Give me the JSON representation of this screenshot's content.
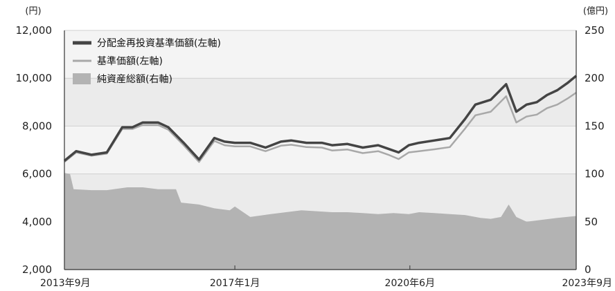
{
  "chart_data": {
    "type": "area",
    "y_left_unit": "(円)",
    "y_right_unit": "(億円)",
    "y_left_ticks": [
      "12,000",
      "10,000",
      "8,000",
      "6,000",
      "4,000",
      "2,000"
    ],
    "y_left_tick_values": [
      12000,
      10000,
      8000,
      6000,
      4000,
      2000
    ],
    "y_right_ticks": [
      "250",
      "200",
      "150",
      "100",
      "50",
      "0"
    ],
    "y_right_tick_values": [
      250,
      200,
      150,
      100,
      50,
      0
    ],
    "x_ticks": [
      "2013年9月",
      "2017年1月",
      "2020年6月",
      "2023年9月"
    ],
    "x_tick_values": [
      2013.67,
      2017.0,
      2020.42,
      2023.67
    ],
    "ylim_left": [
      2000,
      12000
    ],
    "ylim_right": [
      0,
      250
    ],
    "xlim": [
      2013.67,
      2023.67
    ],
    "grid": true,
    "legend_position": "top-left",
    "legend": [
      {
        "label": "分配金再投資基準価額(左軸)",
        "style": "line-thick",
        "color": "#444444"
      },
      {
        "label": "基準価額(左軸)",
        "style": "line-thin",
        "color": "#a8a8a8"
      },
      {
        "label": "純資産総額(右軸)",
        "style": "area",
        "color": "#b3b3b3"
      }
    ],
    "series": [
      {
        "key": "reinvested",
        "axis": "left",
        "x": [
          2013.67,
          2013.9,
          2014.2,
          2014.5,
          2014.8,
          2015.0,
          2015.2,
          2015.5,
          2015.7,
          2016.0,
          2016.3,
          2016.6,
          2016.8,
          2017.0,
          2017.3,
          2017.6,
          2017.9,
          2018.1,
          2018.4,
          2018.7,
          2018.9,
          2019.2,
          2019.5,
          2019.8,
          2020.0,
          2020.2,
          2020.4,
          2020.6,
          2020.9,
          2021.2,
          2021.5,
          2021.7,
          2022.0,
          2022.3,
          2022.5,
          2022.7,
          2022.9,
          2023.1,
          2023.3,
          2023.5,
          2023.67
        ],
        "values": [
          6550,
          6950,
          6800,
          6900,
          7950,
          7950,
          8150,
          8150,
          7950,
          7300,
          6600,
          7500,
          7350,
          7300,
          7300,
          7100,
          7350,
          7400,
          7300,
          7300,
          7200,
          7250,
          7100,
          7200,
          7050,
          6900,
          7200,
          7300,
          7400,
          7500,
          8300,
          8900,
          9100,
          9750,
          8600,
          8900,
          9000,
          9300,
          9500,
          9800,
          10100
        ]
      },
      {
        "key": "nav",
        "axis": "left",
        "x": [
          2013.67,
          2013.9,
          2014.2,
          2014.5,
          2014.8,
          2015.0,
          2015.2,
          2015.5,
          2015.7,
          2016.0,
          2016.3,
          2016.6,
          2016.8,
          2017.0,
          2017.3,
          2017.6,
          2017.9,
          2018.1,
          2018.4,
          2018.7,
          2018.9,
          2019.2,
          2019.5,
          2019.8,
          2020.0,
          2020.2,
          2020.4,
          2020.6,
          2020.9,
          2021.2,
          2021.5,
          2021.7,
          2022.0,
          2022.3,
          2022.5,
          2022.7,
          2022.9,
          2023.1,
          2023.3,
          2023.5,
          2023.67
        ],
        "values": [
          6500,
          6900,
          6760,
          6850,
          7880,
          7880,
          8050,
          8050,
          7850,
          7200,
          6500,
          7380,
          7200,
          7150,
          7150,
          6950,
          7180,
          7220,
          7120,
          7100,
          6980,
          7020,
          6870,
          6950,
          6800,
          6620,
          6900,
          6950,
          7030,
          7120,
          7900,
          8450,
          8600,
          9250,
          8150,
          8400,
          8480,
          8750,
          8900,
          9150,
          9400
        ]
      },
      {
        "key": "total_assets",
        "axis": "right",
        "x": [
          2013.67,
          2013.78,
          2013.85,
          2014.2,
          2014.5,
          2014.9,
          2015.2,
          2015.5,
          2015.85,
          2015.95,
          2016.3,
          2016.6,
          2016.9,
          2017.0,
          2017.3,
          2017.7,
          2018.0,
          2018.3,
          2018.6,
          2018.9,
          2019.2,
          2019.5,
          2019.8,
          2020.1,
          2020.4,
          2020.6,
          2020.9,
          2021.2,
          2021.5,
          2021.8,
          2022.0,
          2022.2,
          2022.35,
          2022.5,
          2022.7,
          2023.0,
          2023.3,
          2023.67
        ],
        "values": [
          101,
          100,
          84,
          83,
          83,
          86,
          86,
          84,
          84,
          70,
          68,
          64,
          62,
          66,
          55,
          58,
          60,
          62,
          61,
          60,
          60,
          59,
          58,
          59,
          58,
          60,
          59,
          58,
          57,
          54,
          53,
          55,
          68,
          55,
          50,
          52,
          54,
          56
        ]
      }
    ]
  }
}
